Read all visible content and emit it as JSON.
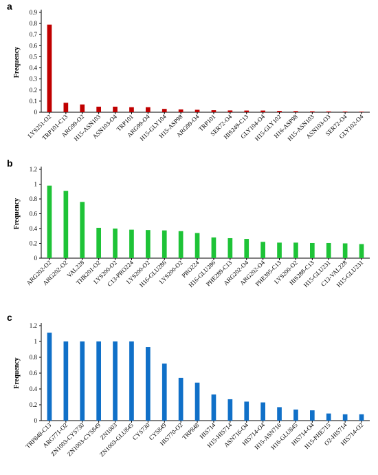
{
  "chart_data": [
    {
      "panel": "a",
      "type": "bar",
      "ylabel": "Frequency",
      "ylim": [
        0,
        0.9
      ],
      "yticks": [
        "0",
        "0.1",
        "0.2",
        "0.3",
        "0.4",
        "0.5",
        "0.6",
        "0.7",
        "0.8",
        "0.9"
      ],
      "color": "#c00000",
      "grid": false,
      "categories": [
        "LYS251-O2",
        "TRP101-C13",
        "ARG99-O2",
        "H15-ASN103",
        "ASN103-O4",
        "TRP101",
        "ARG99-O4",
        "H15-GLY104",
        "H15-ASP98",
        "ARG99-O4",
        "TRP101",
        "SER72-O4",
        "HIS249-C13",
        "GLY104-O4",
        "H15-GLY102",
        "H16-ASP98",
        "H15-ASN103",
        "ASN103-O3",
        "SER72-O4",
        "GLY102-O4"
      ],
      "values": [
        0.79,
        0.085,
        0.07,
        0.05,
        0.05,
        0.045,
        0.045,
        0.03,
        0.025,
        0.022,
        0.018,
        0.016,
        0.015,
        0.015,
        0.012,
        0.01,
        0.008,
        0.007,
        0.006,
        0.005
      ]
    },
    {
      "panel": "b",
      "type": "bar",
      "ylabel": "Frequency",
      "ylim": [
        0,
        1.2
      ],
      "yticks": [
        "0",
        "0.2",
        "0.4",
        "0.6",
        "0.8",
        "1",
        "1.2"
      ],
      "color": "#1ec337",
      "grid": false,
      "categories": [
        "ARG202-O2",
        "ARG202-O2",
        "VAL228",
        "THR201-O2",
        "LYS200-O2",
        "C13-PRO224",
        "LYS200-O2",
        "H16-GLU286",
        "LYS200-O2",
        "PRO224",
        "H16-GLU286",
        "PHE289-C13",
        "ARG202-O4",
        "ARG202-O4",
        "PHE395-C13",
        "LYS200-O2",
        "HIS288-C13",
        "H15-GLU231",
        "C13-VAL228",
        "H15-GLU231"
      ],
      "values": [
        0.98,
        0.91,
        0.76,
        0.41,
        0.4,
        0.385,
        0.38,
        0.375,
        0.365,
        0.34,
        0.28,
        0.27,
        0.26,
        0.22,
        0.21,
        0.21,
        0.205,
        0.205,
        0.2,
        0.19
      ]
    },
    {
      "panel": "c",
      "type": "bar",
      "ylabel": "Frequency",
      "ylim": [
        0,
        1.2
      ],
      "yticks": [
        "0",
        "0.2",
        "0.4",
        "0.6",
        "0.8",
        "1",
        "1.2"
      ],
      "color": "#1070c8",
      "grid": false,
      "categories": [
        "TRP848-C13",
        "ARG771-O2",
        "ZN1003-CYS730",
        "ZN1003-CYS849",
        "ZN1003",
        "ZN1003-GLU845",
        "CYS730",
        "CYS849",
        "HIS770-O2",
        "TRP848",
        "HIS714",
        "H15-HIS714",
        "ASN716-O4",
        "HIS714-O4",
        "H15-ASN716",
        "H16-GLU845",
        "HIS714-O4",
        "H15-PHE715",
        "O2-HIS714",
        "HIS714-O2"
      ],
      "values": [
        1.11,
        1.0,
        1.0,
        1.0,
        1.0,
        1.0,
        0.93,
        0.72,
        0.54,
        0.48,
        0.33,
        0.27,
        0.24,
        0.23,
        0.17,
        0.14,
        0.13,
        0.09,
        0.08,
        0.08
      ]
    }
  ]
}
